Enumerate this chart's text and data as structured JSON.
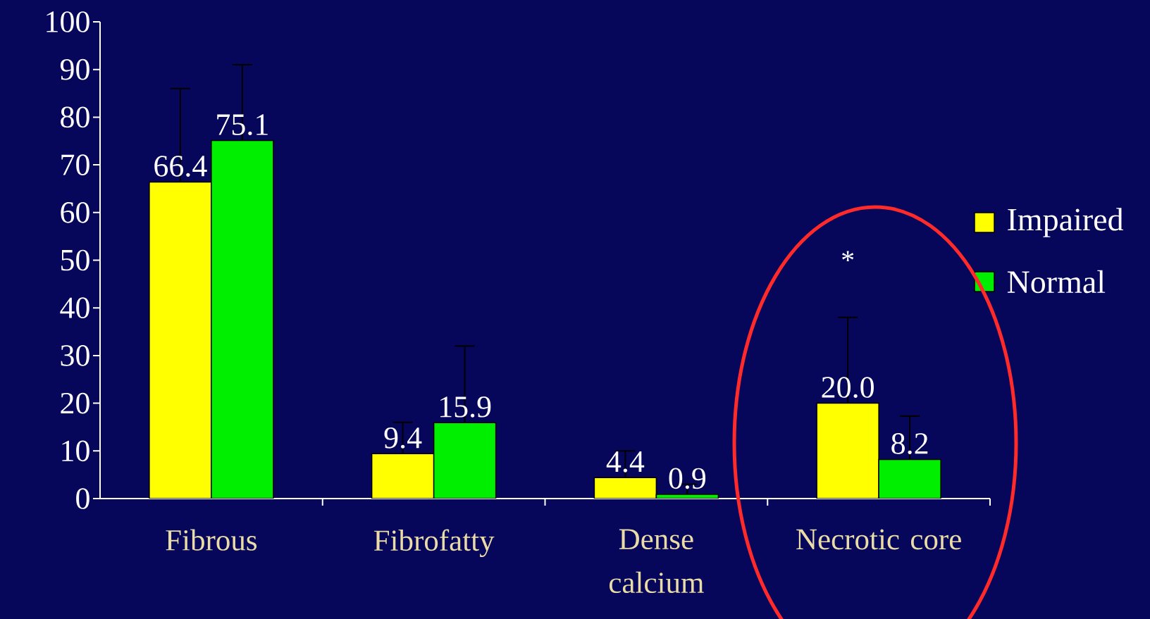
{
  "chart_data": {
    "type": "bar",
    "categories": [
      "Fibrous",
      "Fibrofatty",
      "Dense calcium",
      "Necrotic core"
    ],
    "series": [
      {
        "name": "Impaired",
        "color": "#ffff00",
        "values": [
          66.4,
          9.4,
          4.4,
          20.0
        ],
        "value_labels": [
          "66.4",
          "9.4",
          "4.4",
          "20.0"
        ],
        "errors": [
          [
            66.4,
            86
          ],
          [
            9.4,
            16
          ],
          [
            4.4,
            10
          ],
          [
            20.0,
            38
          ]
        ]
      },
      {
        "name": "Normal",
        "color": "#00ee00",
        "values": [
          75.1,
          15.9,
          0.9,
          8.2
        ],
        "value_labels": [
          "75.1",
          "15.9",
          "0.9",
          "8.2"
        ],
        "errors": [
          [
            75.1,
            91
          ],
          [
            15.9,
            32
          ],
          [
            0.9,
            3
          ],
          [
            8.2,
            17.3
          ]
        ]
      }
    ],
    "ylim": [
      0,
      100
    ],
    "yticks": [
      0,
      10,
      20,
      30,
      40,
      50,
      60,
      70,
      80,
      90,
      100
    ],
    "annotations": [
      "*"
    ],
    "legend": "right"
  }
}
